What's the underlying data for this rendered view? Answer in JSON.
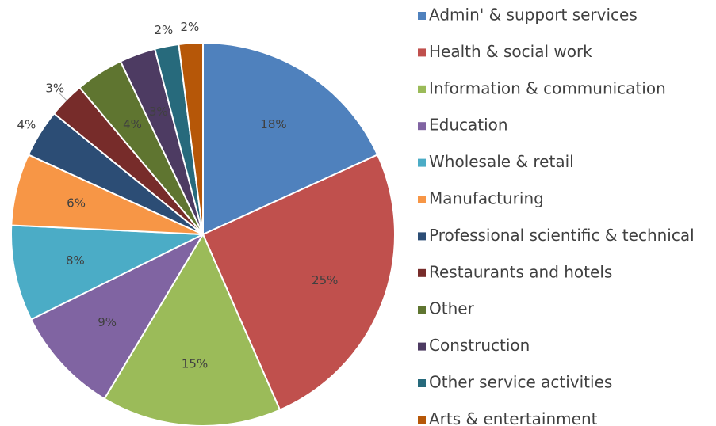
{
  "chart_data": {
    "type": "pie",
    "categories": [
      "Admin' & support services",
      "Health & social work",
      "Information & communication",
      "Education",
      "Wholesale & retail",
      "Manufacturing",
      "Professional scientific & technical",
      "Restaurants and hotels",
      "Other",
      "Construction",
      "Other service activities",
      "Arts & entertainment"
    ],
    "values": [
      18,
      25,
      15,
      9,
      8,
      6,
      4,
      3,
      4,
      3,
      2,
      2
    ],
    "value_labels": [
      "18%",
      "25%",
      "15%",
      "9%",
      "8%",
      "6%",
      "4%",
      "3%",
      "4%",
      "3%",
      "2%",
      "2%"
    ],
    "colors": [
      "#4f81bd",
      "#c0504d",
      "#9bbb59",
      "#8064a2",
      "#4bacc6",
      "#f79646",
      "#2c4d75",
      "#772c2a",
      "#5f7530",
      "#4d3b62",
      "#276a7c",
      "#b65708"
    ],
    "legend": "right"
  }
}
